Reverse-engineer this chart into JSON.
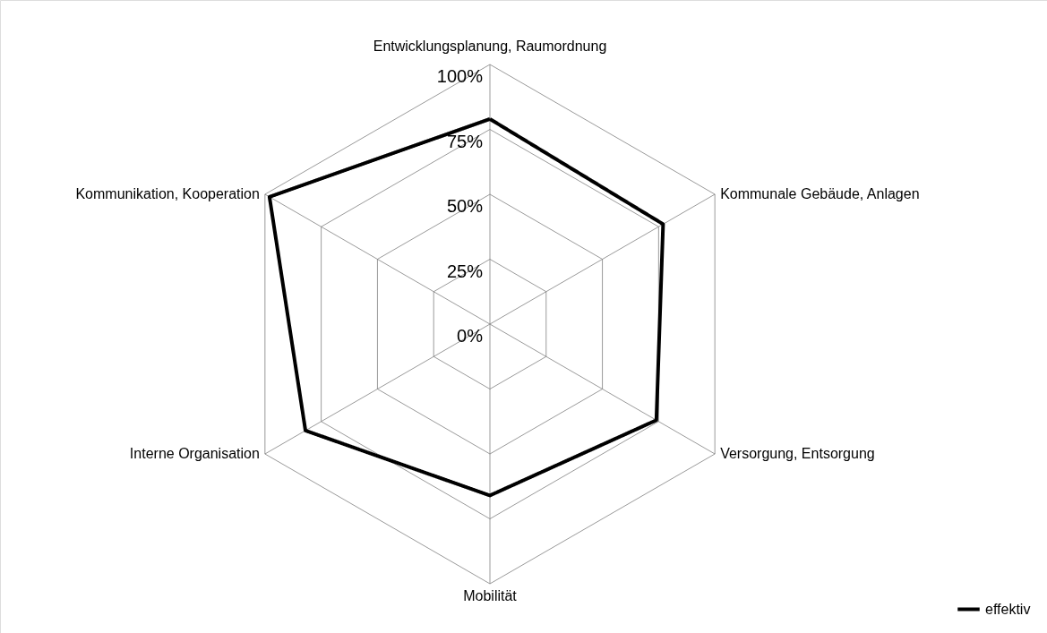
{
  "chart_data": {
    "type": "radar",
    "categories": [
      "Entwicklungsplanung, Raumordnung",
      "Kommunale Gebäude, Anlagen",
      "Versorgung, Entsorgung",
      "Mobilität",
      "Interne Organisation",
      "Kommunikation, Kooperation"
    ],
    "series": [
      {
        "name": "effektiv",
        "color": "#000000",
        "values": [
          79,
          77,
          74,
          66,
          82,
          98
        ]
      }
    ],
    "ylim": [
      0,
      100
    ],
    "yticks": [
      {
        "value": 0,
        "label": "0%"
      },
      {
        "value": 25,
        "label": "25%"
      },
      {
        "value": 50,
        "label": "50%"
      },
      {
        "value": 75,
        "label": "75%"
      },
      {
        "value": 100,
        "label": "100%"
      }
    ],
    "legend": "bottom right",
    "marker": "none",
    "line_style": "solid"
  }
}
